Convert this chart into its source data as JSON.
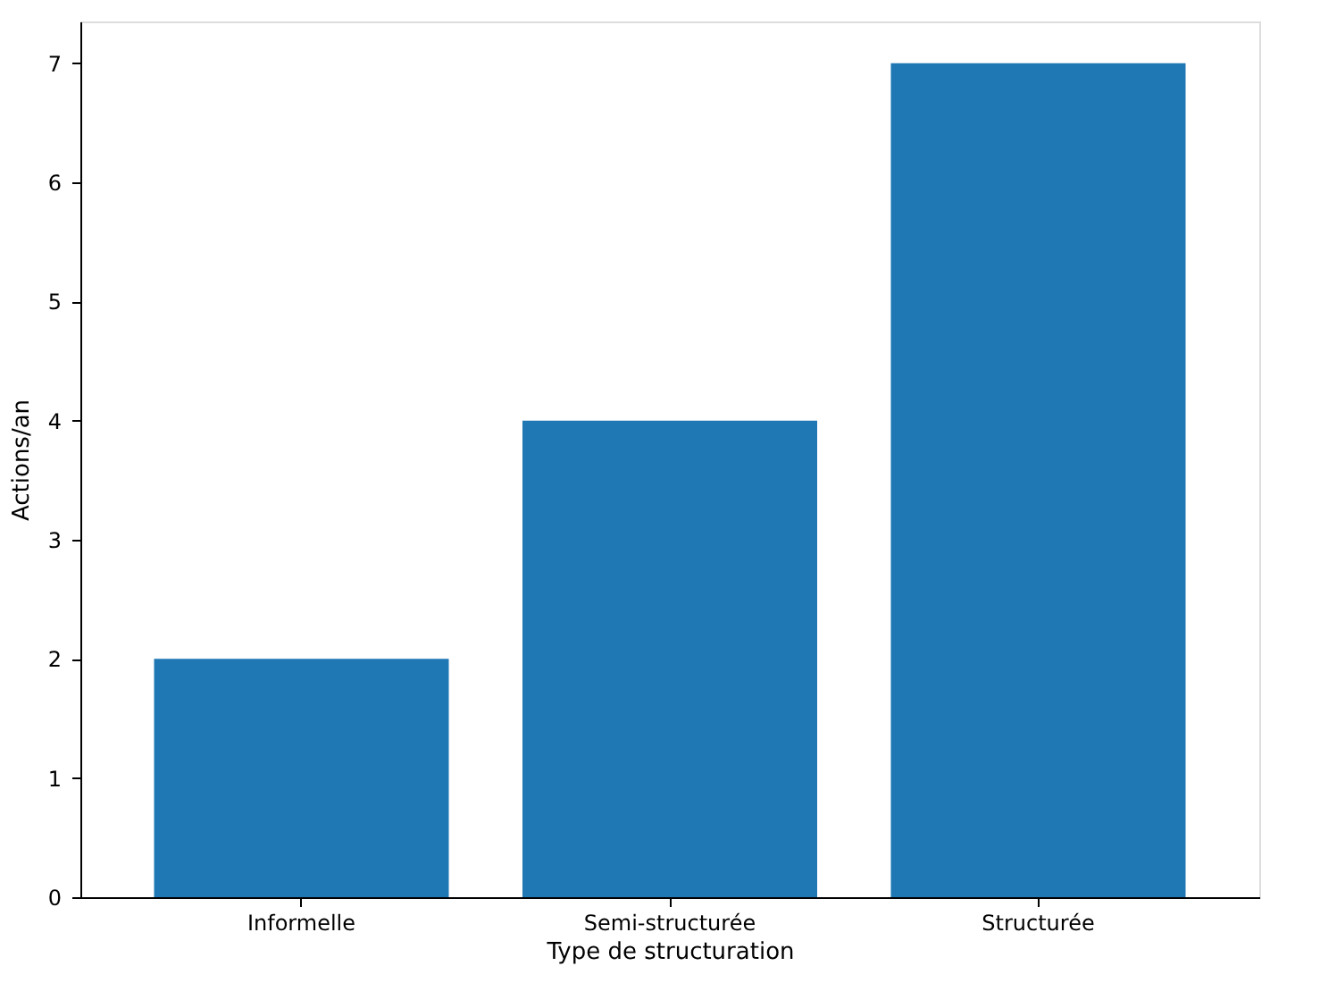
{
  "chart_data": {
    "type": "bar",
    "xlabel": "Type de structuration",
    "ylabel": "Actions/an",
    "categories": [
      "Informelle",
      "Semi-structurée",
      "Structurée"
    ],
    "values": [
      2,
      4,
      7
    ],
    "color": "#1f77b4",
    "ylim": [
      0,
      7.35
    ],
    "yticks": [
      0,
      1,
      2,
      3,
      4,
      5,
      6,
      7
    ],
    "grid": false
  }
}
